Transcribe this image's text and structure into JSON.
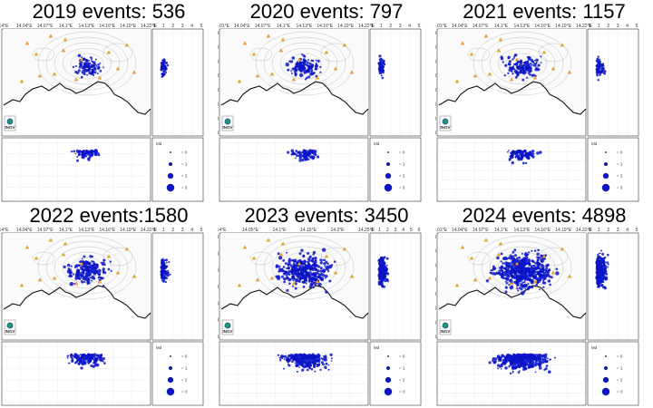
{
  "panels": [
    {
      "title": "2019 events: 536",
      "events": 536,
      "lon_labels": [
        "14°E",
        "14.04°E",
        "14.07°E",
        "14.1°E",
        "14.13°E",
        "14.16°E",
        "14.19°E",
        "14.22°E"
      ],
      "lat_labels": [],
      "depth_labels": [
        "0",
        "1",
        "2",
        "3",
        "4",
        "5"
      ],
      "top_scale": [
        "0",
        "1",
        "2",
        "3",
        "4",
        "5"
      ]
    },
    {
      "title": "2020 events: 797",
      "events": 797,
      "lon_labels": [
        "14.01°E",
        "14.04°E",
        "14.07°E",
        "14.1°E",
        "14.13°E",
        "14.16°E",
        "14.19°E",
        "14.22°E"
      ],
      "lat_labels": [
        "40.87°N",
        "40.855°N",
        "40.84°N",
        "40.825°N",
        "40.81°N",
        "40.795°N",
        "40.78°N",
        "40.765°N"
      ],
      "depth_labels": [
        "0",
        "1",
        "2",
        "3",
        "4",
        "5"
      ],
      "top_scale": [
        "0",
        "1",
        "2",
        "3",
        "4",
        "5"
      ]
    },
    {
      "title": "2021 events: 1157",
      "events": 1157,
      "lon_labels": [
        "14.01°E",
        "14.04°E",
        "14.07°E",
        "14.1°E",
        "14.13°E",
        "14.16°E",
        "14.19°E",
        "14.22°E"
      ],
      "lat_labels": [
        "40.87°N",
        "40.855°N",
        "40.84°N",
        "40.825°N",
        "40.81°N",
        "40.795°N",
        "40.78°N",
        "40.765°N"
      ],
      "depth_labels": [
        "0",
        "1",
        "2",
        "3",
        "4",
        "5",
        "6"
      ],
      "top_scale": [
        "0",
        "1",
        "2",
        "3",
        "4",
        "5"
      ]
    },
    {
      "title": "2022 events:1580",
      "events": 1580,
      "lon_labels": [
        "14°E",
        "14.04°E",
        "14.07°E",
        "14.1°E",
        "14.13°E",
        "14.16°E",
        "14.19°E",
        "14.22°E"
      ],
      "lat_labels": [],
      "depth_labels": [
        "0",
        "1",
        "2",
        "3",
        "4",
        "5"
      ],
      "top_scale": [
        "0",
        "1",
        "2",
        "3",
        "4",
        "5"
      ]
    },
    {
      "title": "2023 events: 3450",
      "events": 3450,
      "lon_labels": [
        "14°E",
        "14.05°E",
        "14.1°E",
        "14.15°E",
        "14.2°E",
        "14.25°E"
      ],
      "lat_labels": [
        "40.88°N",
        "40.86°N",
        "40.84°N",
        "40.82°N",
        "40.8°N",
        "40.78°N",
        "40.76°N"
      ],
      "depth_labels": [
        "0",
        "1",
        "2",
        "3",
        "4",
        "5",
        "6"
      ],
      "top_scale": [
        "0",
        "1",
        "2",
        "3",
        "4",
        "5",
        "6"
      ]
    },
    {
      "title": "2024 events: 4898",
      "events": 4898,
      "lon_labels": [
        "14.01°E",
        "14.04°E",
        "14.07°E",
        "14.1°E",
        "14.13°E",
        "14.16°E",
        "14.19°E",
        "14.22°E"
      ],
      "lat_labels": [
        "40.87°N",
        "40.855°N",
        "40.84°N",
        "40.825°N",
        "40.81°N",
        "40.795°N",
        "40.78°N",
        "40.765°N"
      ],
      "depth_labels": [
        "0",
        "1",
        "2",
        "3",
        "4",
        "5",
        "6"
      ],
      "top_scale": [
        "0",
        "1",
        "2",
        "3",
        "4",
        "5"
      ]
    }
  ],
  "legend": {
    "title": "Md",
    "entries": [
      "= 0",
      "= 1",
      "= 2",
      "= 3"
    ]
  },
  "logo_text": "INGV",
  "colors": {
    "events": "#0a14c8",
    "stations": "#f5a623",
    "coast": "#111111",
    "contour": "#9a9a9a"
  }
}
